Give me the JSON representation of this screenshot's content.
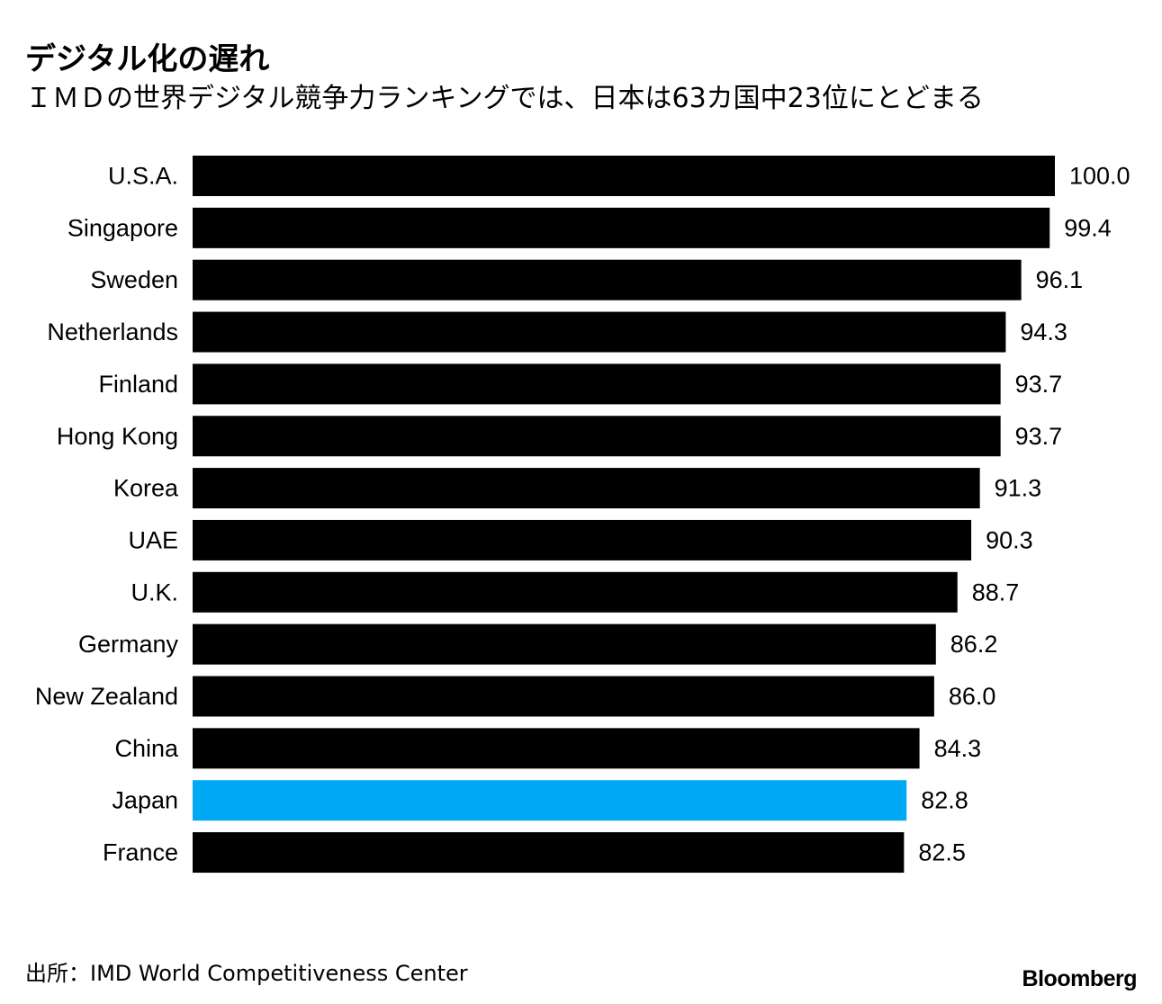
{
  "header": {
    "title": "デジタル化の遅れ",
    "subtitle": "ＩＭＤの世界デジタル競争力ランキングでは、日本は63カ国中23位にとどまる"
  },
  "footer": {
    "source": "出所：IMD World Competitiveness Center",
    "brand": "Bloomberg"
  },
  "colors": {
    "bar": "#000000",
    "highlight": "#00a9f4"
  },
  "chart_data": {
    "type": "bar",
    "orientation": "horizontal",
    "title": "デジタル化の遅れ",
    "subtitle": "ＩＭＤの世界デジタル競争力ランキングでは、日本は63カ国中23位にとどまる",
    "categories": [
      "U.S.A.",
      "Singapore",
      "Sweden",
      "Netherlands",
      "Finland",
      "Hong Kong",
      "Korea",
      "UAE",
      "U.K.",
      "Germany",
      "New Zealand",
      "China",
      "Japan",
      "France"
    ],
    "values": [
      100.0,
      99.4,
      96.1,
      94.3,
      93.7,
      93.7,
      91.3,
      90.3,
      88.7,
      86.2,
      86.0,
      84.3,
      82.8,
      82.5
    ],
    "value_labels": [
      "100.0",
      "99.4",
      "96.1",
      "94.3",
      "93.7",
      "93.7",
      "91.3",
      "90.3",
      "88.7",
      "86.2",
      "86.0",
      "84.3",
      "82.8",
      "82.5"
    ],
    "highlight": "Japan",
    "xlim": [
      0,
      100
    ],
    "xlabel": "",
    "ylabel": "",
    "grid": false
  }
}
